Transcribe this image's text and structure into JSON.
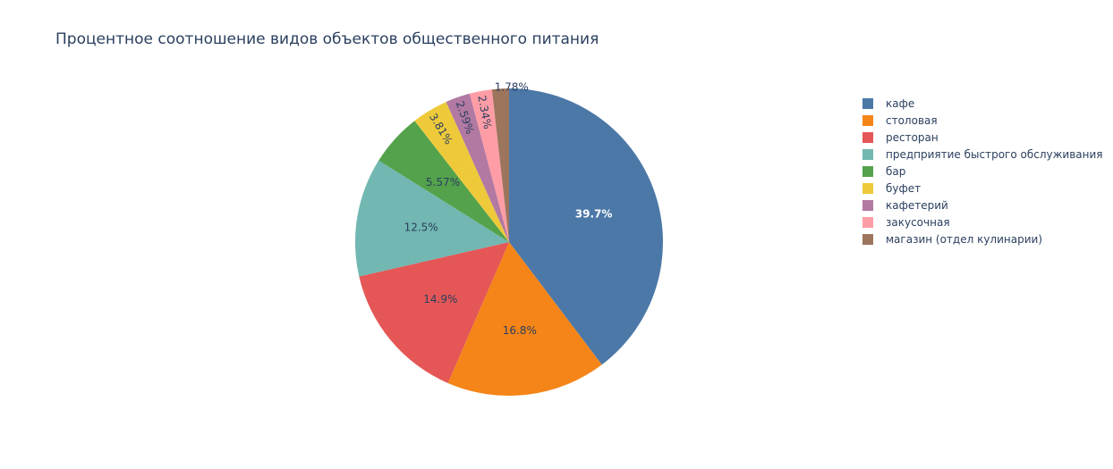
{
  "chart_data": {
    "type": "pie",
    "title": "Процентное соотношение видов объектов общественного питания",
    "labels": [
      "кафе",
      "столовая",
      "ресторан",
      "предприятие быстрого обслуживания",
      "бар",
      "буфет",
      "кафетерий",
      "закусочная",
      "магазин (отдел кулинарии)"
    ],
    "values": [
      39.7,
      16.8,
      14.9,
      12.5,
      5.57,
      3.81,
      2.59,
      2.34,
      1.78
    ],
    "text_labels": [
      "39.7%",
      "16.8%",
      "14.9%",
      "12.5%",
      "5.57%",
      "3.81%",
      "2.59%",
      "2.34%",
      "1.78%"
    ],
    "colors": [
      "#4c78a8",
      "#f58518",
      "#e45756",
      "#72b7b2",
      "#54a24b",
      "#eeca3b",
      "#b279a2",
      "#ff9da6",
      "#9d755d"
    ],
    "direction": "clockwise",
    "legend_position": "right"
  }
}
